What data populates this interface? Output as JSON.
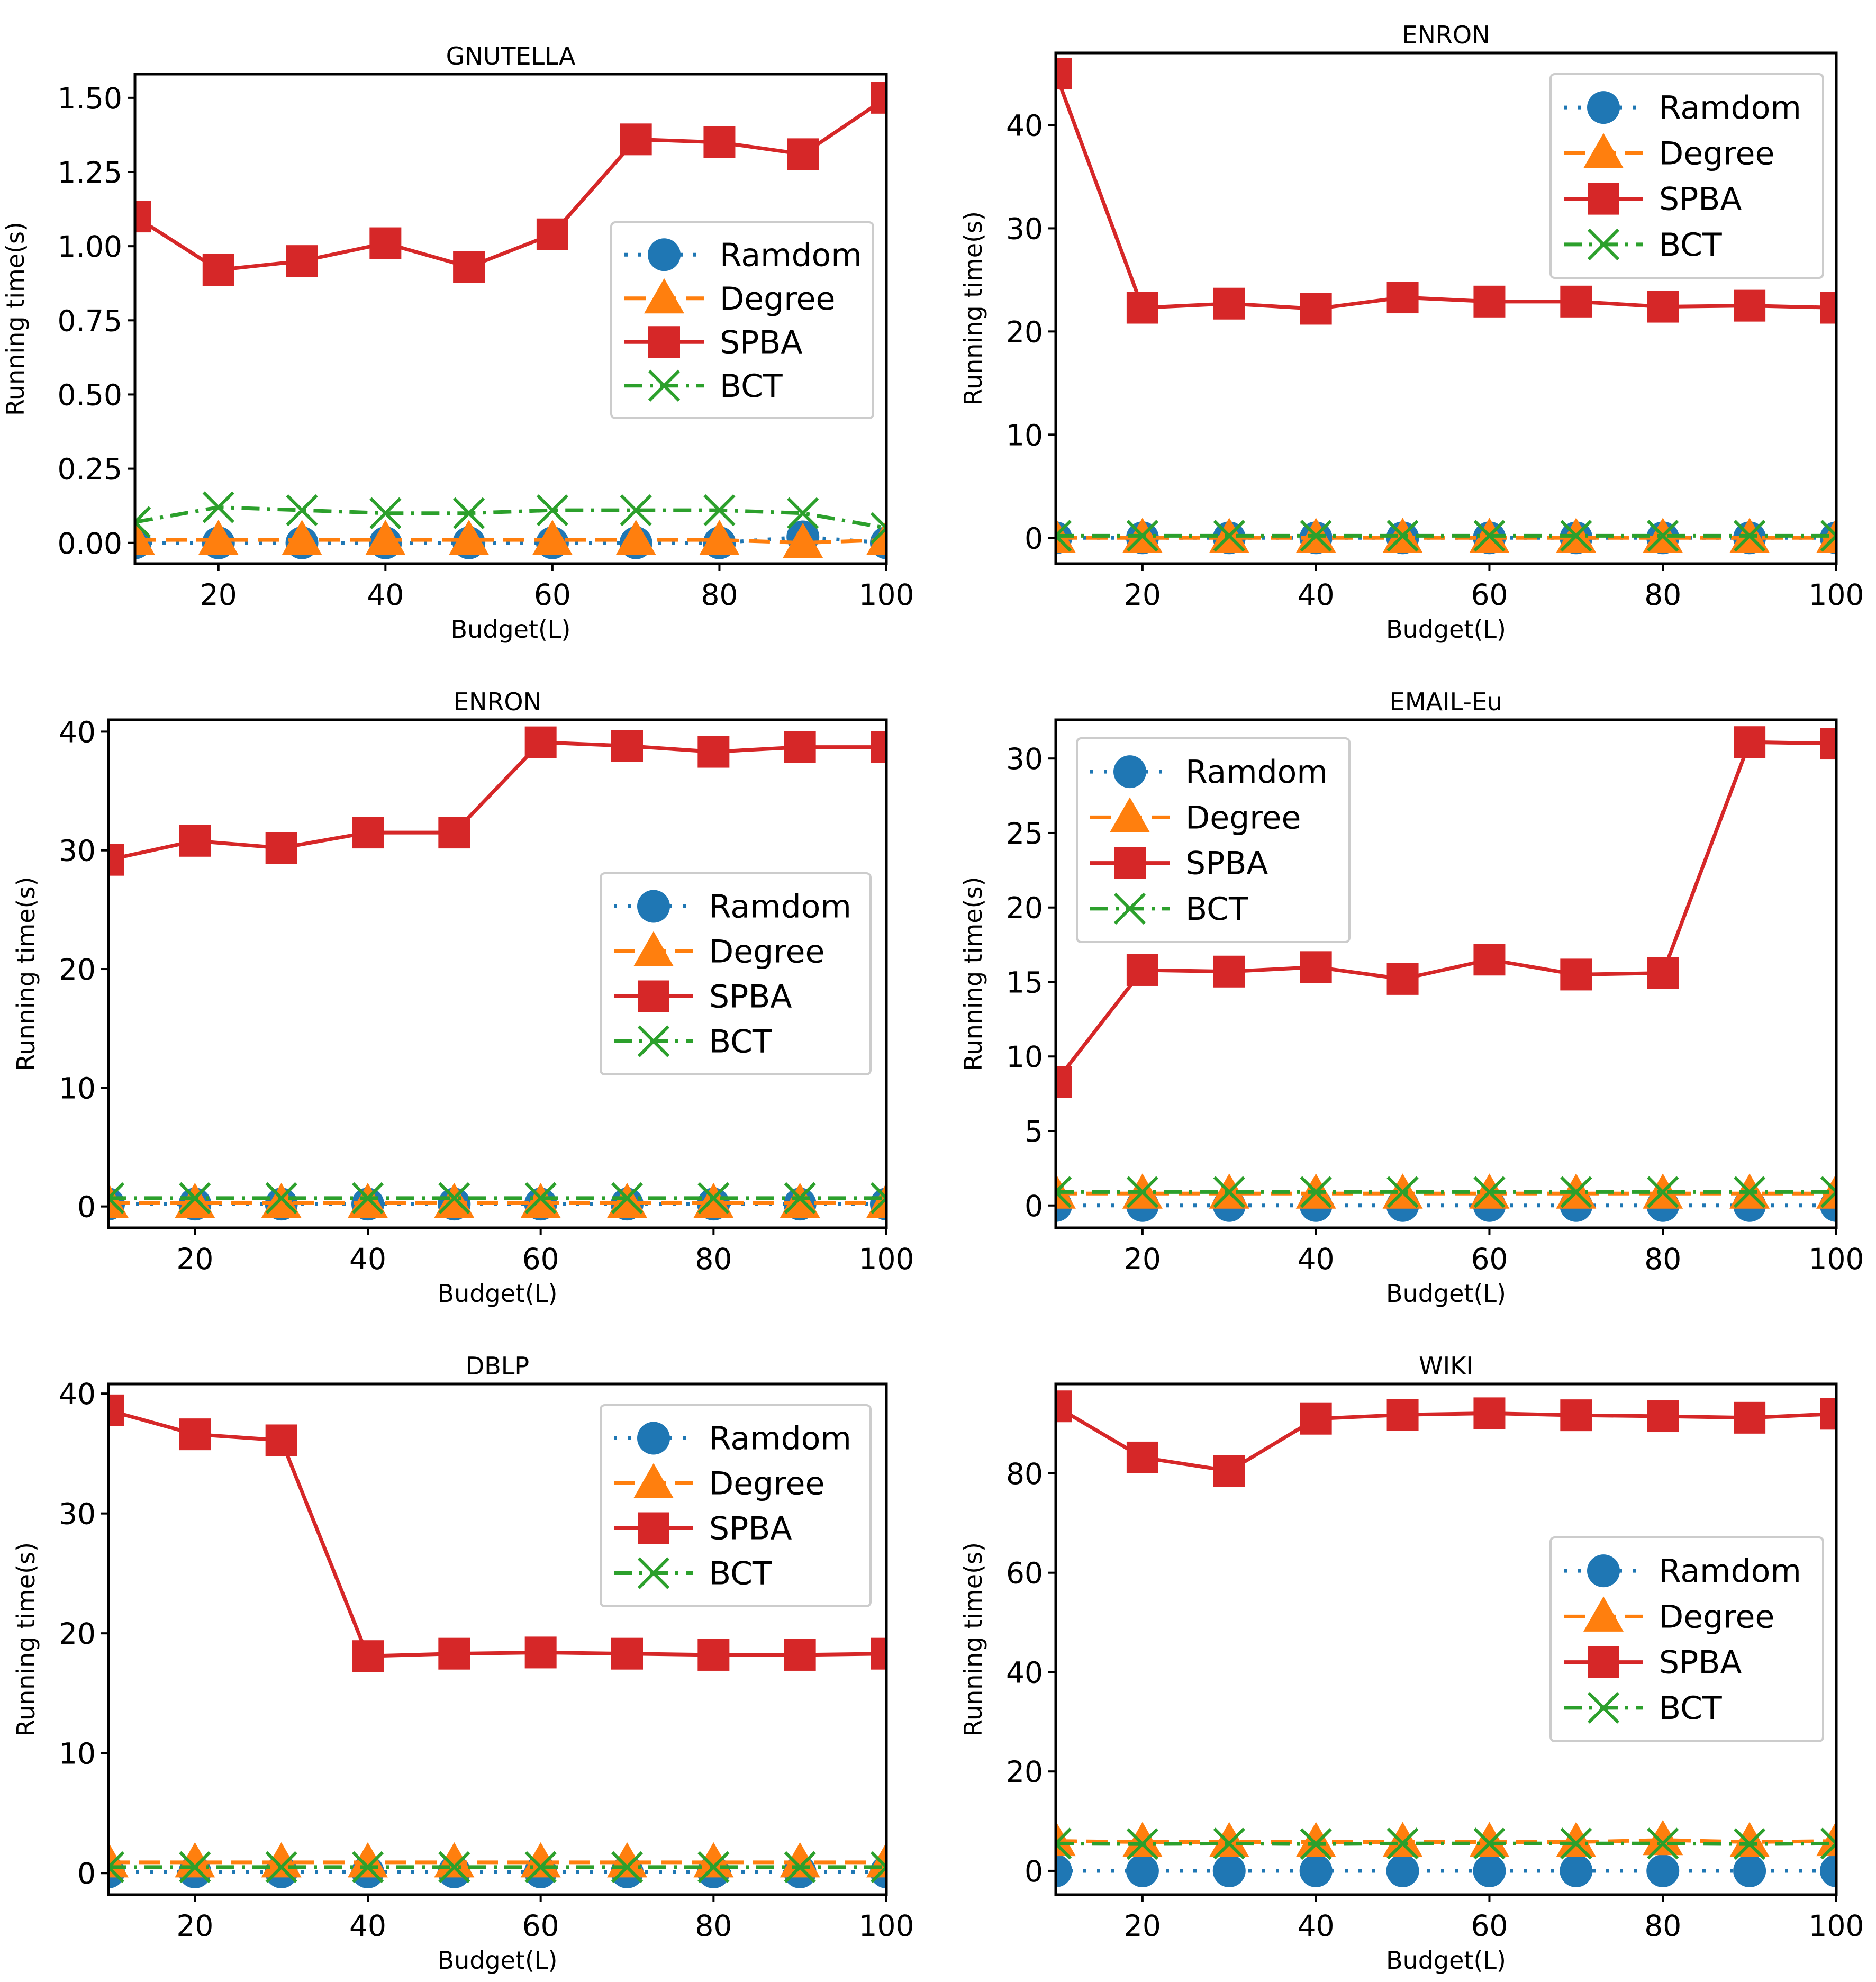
{
  "colors": {
    "Ramdom": "#1f77b4",
    "Degree": "#ff7f0e",
    "SPBA": "#d62728",
    "BCT": "#2ca02c"
  },
  "chart_data": [
    {
      "type": "line",
      "title": "GNUTELLA",
      "xlabel": "Budget(L)",
      "ylabel": "Running time(s)",
      "xlim": [
        10,
        100
      ],
      "ylim": [
        -0.07,
        1.58
      ],
      "xticks": [
        "20",
        "40",
        "60",
        "80",
        "100"
      ],
      "yticks": [
        "0.00",
        "0.25",
        "0.50",
        "0.75",
        "1.00",
        "1.25",
        "1.50"
      ],
      "x": [
        10,
        20,
        30,
        40,
        50,
        60,
        70,
        80,
        90,
        100
      ],
      "legend_position": "center-right",
      "series": [
        {
          "name": "Ramdom",
          "values": [
            0.0,
            0.0,
            0.0,
            0.0,
            0.0,
            0.0,
            0.0,
            0.0,
            0.02,
            0.0
          ]
        },
        {
          "name": "Degree",
          "values": [
            0.01,
            0.01,
            0.01,
            0.01,
            0.01,
            0.01,
            0.01,
            0.01,
            0.0,
            0.01
          ]
        },
        {
          "name": "SPBA",
          "values": [
            1.1,
            0.92,
            0.95,
            1.01,
            0.93,
            1.04,
            1.36,
            1.35,
            1.31,
            1.5
          ]
        },
        {
          "name": "BCT",
          "values": [
            0.07,
            0.12,
            0.11,
            0.1,
            0.1,
            0.11,
            0.11,
            0.11,
            0.1,
            0.05
          ]
        }
      ]
    },
    {
      "type": "line",
      "title": "ENRON",
      "xlabel": "Budget(L)",
      "ylabel": "Running time(s)",
      "xlim": [
        10,
        100
      ],
      "ylim": [
        -2.5,
        47
      ],
      "xticks": [
        "20",
        "40",
        "60",
        "80",
        "100"
      ],
      "yticks": [
        "0",
        "10",
        "20",
        "30",
        "40"
      ],
      "x": [
        10,
        20,
        30,
        40,
        50,
        60,
        70,
        80,
        90,
        100
      ],
      "legend_position": "upper-right",
      "series": [
        {
          "name": "Ramdom",
          "values": [
            0,
            0,
            0,
            0,
            0,
            0,
            0,
            0,
            0,
            0
          ]
        },
        {
          "name": "Degree",
          "values": [
            0,
            0,
            0,
            0,
            0,
            0,
            0,
            0,
            0,
            0
          ]
        },
        {
          "name": "SPBA",
          "values": [
            45,
            22.3,
            22.7,
            22.2,
            23.3,
            22.9,
            22.9,
            22.4,
            22.5,
            22.3
          ]
        },
        {
          "name": "BCT",
          "values": [
            0.2,
            0.2,
            0.2,
            0.2,
            0.2,
            0.2,
            0.2,
            0.2,
            0.2,
            0.2
          ]
        }
      ]
    },
    {
      "type": "line",
      "title": "ENRON",
      "xlabel": "Budget(L)",
      "ylabel": "Running time(s)",
      "xlim": [
        10,
        100
      ],
      "ylim": [
        -1.8,
        41
      ],
      "xticks": [
        "20",
        "40",
        "60",
        "80",
        "100"
      ],
      "yticks": [
        "0",
        "10",
        "20",
        "30",
        "40"
      ],
      "x": [
        10,
        20,
        30,
        40,
        50,
        60,
        70,
        80,
        90,
        100
      ],
      "legend_position": "center-right",
      "series": [
        {
          "name": "Ramdom",
          "values": [
            0.2,
            0.2,
            0.2,
            0.2,
            0.2,
            0.2,
            0.2,
            0.2,
            0.2,
            0.2
          ]
        },
        {
          "name": "Degree",
          "values": [
            0.3,
            0.3,
            0.3,
            0.3,
            0.3,
            0.3,
            0.3,
            0.3,
            0.3,
            0.3
          ]
        },
        {
          "name": "SPBA",
          "values": [
            29.2,
            30.8,
            30.2,
            31.5,
            31.5,
            39.1,
            38.8,
            38.3,
            38.7,
            38.7
          ]
        },
        {
          "name": "BCT",
          "values": [
            0.7,
            0.7,
            0.7,
            0.7,
            0.7,
            0.7,
            0.7,
            0.7,
            0.7,
            0.7
          ]
        }
      ]
    },
    {
      "type": "line",
      "title": "EMAIL-Eu",
      "xlabel": "Budget(L)",
      "ylabel": "Running time(s)",
      "xlim": [
        10,
        100
      ],
      "ylim": [
        -1.5,
        32.6
      ],
      "xticks": [
        "20",
        "40",
        "60",
        "80",
        "100"
      ],
      "yticks": [
        "0",
        "5",
        "10",
        "15",
        "20",
        "25",
        "30"
      ],
      "x": [
        10,
        20,
        30,
        40,
        50,
        60,
        70,
        80,
        90,
        100
      ],
      "legend_position": "upper-left",
      "series": [
        {
          "name": "Ramdom",
          "values": [
            0,
            0,
            0,
            0,
            0,
            0,
            0,
            0,
            0,
            0
          ]
        },
        {
          "name": "Degree",
          "values": [
            0.8,
            0.8,
            0.8,
            0.8,
            0.8,
            0.8,
            0.8,
            0.8,
            0.8,
            0.8
          ]
        },
        {
          "name": "SPBA",
          "values": [
            8.3,
            15.8,
            15.7,
            16.0,
            15.2,
            16.5,
            15.5,
            15.6,
            31.1,
            31.0
          ]
        },
        {
          "name": "BCT",
          "values": [
            0.9,
            0.9,
            0.9,
            0.9,
            0.9,
            0.9,
            0.9,
            0.9,
            0.9,
            0.9
          ]
        }
      ]
    },
    {
      "type": "line",
      "title": "DBLP",
      "xlabel": "Budget(L)",
      "ylabel": "Running time(s)",
      "xlim": [
        10,
        100
      ],
      "ylim": [
        -1.8,
        40.8
      ],
      "xticks": [
        "20",
        "40",
        "60",
        "80",
        "100"
      ],
      "yticks": [
        "0",
        "10",
        "20",
        "30",
        "40"
      ],
      "x": [
        10,
        20,
        30,
        40,
        50,
        60,
        70,
        80,
        90,
        100
      ],
      "legend_position": "upper-right",
      "series": [
        {
          "name": "Ramdom",
          "values": [
            0.1,
            0.1,
            0.1,
            0.1,
            0.1,
            0.1,
            0.1,
            0.1,
            0.1,
            0.1
          ]
        },
        {
          "name": "Degree",
          "values": [
            0.9,
            0.9,
            0.9,
            0.9,
            0.9,
            0.9,
            0.9,
            0.9,
            0.9,
            0.9
          ]
        },
        {
          "name": "SPBA",
          "values": [
            38.6,
            36.6,
            36.1,
            18.1,
            18.3,
            18.4,
            18.3,
            18.2,
            18.2,
            18.3
          ]
        },
        {
          "name": "BCT",
          "values": [
            0.5,
            0.5,
            0.5,
            0.5,
            0.5,
            0.5,
            0.5,
            0.5,
            0.5,
            0.5
          ]
        }
      ]
    },
    {
      "type": "line",
      "title": "WIKI",
      "xlabel": "Budget(L)",
      "ylabel": "Running time(s)",
      "xlim": [
        10,
        100
      ],
      "ylim": [
        -4.8,
        98
      ],
      "xticks": [
        "20",
        "40",
        "60",
        "80",
        "100"
      ],
      "yticks": [
        "0",
        "20",
        "40",
        "60",
        "80"
      ],
      "x": [
        10,
        20,
        30,
        40,
        50,
        60,
        70,
        80,
        90,
        100
      ],
      "legend_position": "center-right",
      "series": [
        {
          "name": "Ramdom",
          "values": [
            0,
            0,
            0,
            0,
            0,
            0,
            0,
            0,
            0,
            0
          ]
        },
        {
          "name": "Degree",
          "values": [
            6.0,
            5.8,
            5.8,
            5.8,
            5.8,
            5.8,
            5.8,
            6.2,
            5.8,
            6.0
          ]
        },
        {
          "name": "SPBA",
          "values": [
            93.5,
            83.2,
            80.5,
            91.0,
            91.8,
            92.1,
            91.7,
            91.5,
            91.2,
            92.0
          ]
        },
        {
          "name": "BCT",
          "values": [
            5.5,
            5.4,
            5.5,
            5.4,
            5.5,
            5.5,
            5.5,
            5.5,
            5.4,
            5.5
          ]
        }
      ]
    }
  ]
}
